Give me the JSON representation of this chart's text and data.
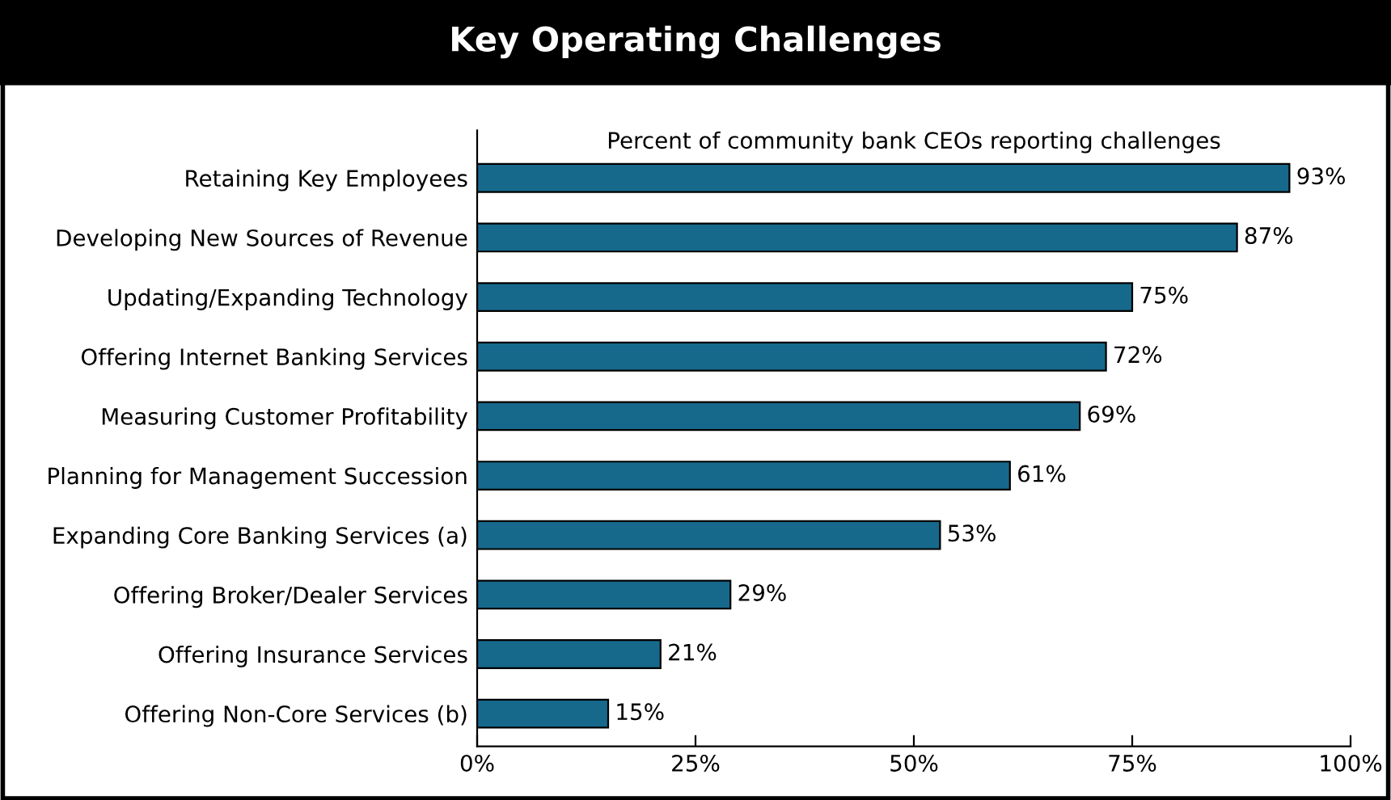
{
  "chart_data": {
    "type": "bar",
    "orientation": "horizontal",
    "title": "Key Operating Challenges",
    "subtitle": "Percent of community bank CEOs reporting challenges",
    "categories": [
      "Retaining Key Employees",
      "Developing New Sources of Revenue",
      "Updating/Expanding Technology",
      "Offering Internet Banking Services",
      "Measuring Customer Profitability",
      "Planning for Management Succession",
      "Expanding Core Banking Services (a)",
      "Offering Broker/Dealer Services",
      "Offering Insurance Services",
      "Offering Non-Core Services (b)"
    ],
    "values": [
      93,
      87,
      75,
      72,
      69,
      61,
      53,
      29,
      21,
      15
    ],
    "value_labels": [
      "93%",
      "87%",
      "75%",
      "72%",
      "69%",
      "61%",
      "53%",
      "29%",
      "21%",
      "15%"
    ],
    "color": "#17698c",
    "xlim": [
      0,
      100
    ],
    "xticks": [
      {
        "value": 0,
        "label": "0%"
      },
      {
        "value": 25,
        "label": "25%"
      },
      {
        "value": 50,
        "label": "50%"
      },
      {
        "value": 75,
        "label": "75%"
      },
      {
        "value": 100,
        "label": "100%"
      }
    ],
    "grid": false,
    "legend": false
  }
}
